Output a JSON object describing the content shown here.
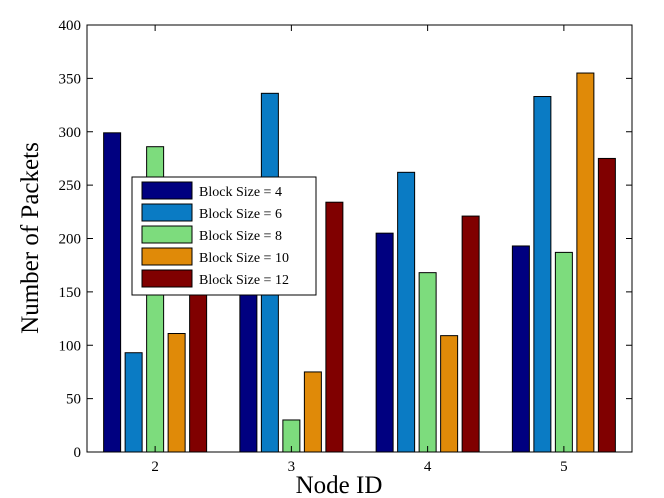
{
  "chart_data": {
    "type": "bar",
    "title": "",
    "xlabel": "Node ID",
    "ylabel": "Number of Packets",
    "categories": [
      "2",
      "3",
      "4",
      "5"
    ],
    "ylim": [
      0,
      400
    ],
    "yticks": [
      0,
      50,
      100,
      150,
      200,
      250,
      300,
      350,
      400
    ],
    "grid": false,
    "legend_position": "left-middle",
    "series": [
      {
        "name": "Block Size = 4",
        "color": "#000080",
        "values": [
          299,
          148,
          205,
          193
        ]
      },
      {
        "name": "Block Size = 6",
        "color": "#0a7bc4",
        "values": [
          93,
          336,
          262,
          333
        ]
      },
      {
        "name": "Block Size = 8",
        "color": "#7ddc7d",
        "values": [
          286,
          30,
          168,
          187
        ]
      },
      {
        "name": "Block Size = 10",
        "color": "#e08a08",
        "values": [
          111,
          75,
          109,
          355
        ]
      },
      {
        "name": "Block Size = 12",
        "color": "#800000",
        "values": [
          148,
          234,
          221,
          275
        ]
      }
    ]
  }
}
